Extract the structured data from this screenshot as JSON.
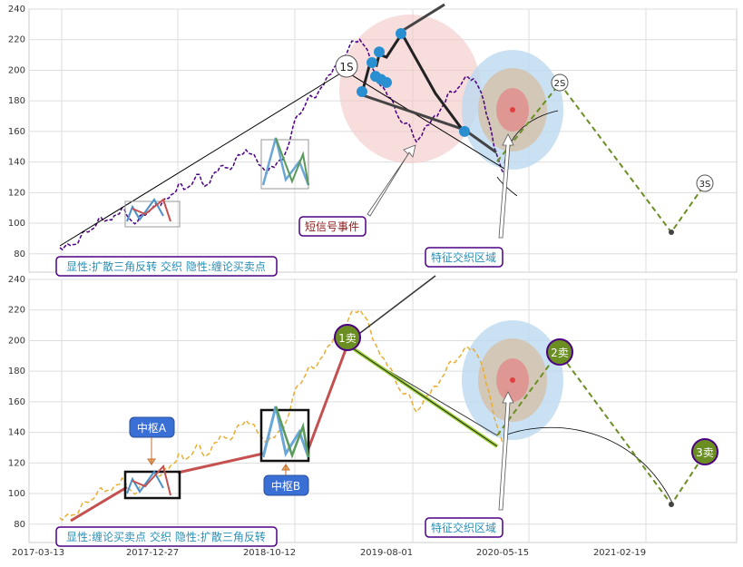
{
  "chart_data": [
    {
      "type": "line",
      "panel": "top",
      "ylim": [
        68,
        240
      ],
      "yticks": [
        "80",
        "100",
        "120",
        "140",
        "160",
        "180",
        "200",
        "220",
        "240"
      ],
      "grid": true,
      "x_dates_shown_bottom": [
        "2017-03-13",
        "2017-12-27",
        "2018-10-12",
        "2019-08-01",
        "2020-05-15",
        "2021-02-19"
      ],
      "series": [
        {
          "values": [
            84,
            83,
            86,
            88,
            90,
            93,
            97,
            100,
            102,
            101,
            104,
            106,
            108,
            105,
            103,
            100,
            104,
            108,
            112,
            110,
            114,
            118,
            120,
            124,
            122,
            126,
            128,
            130,
            125,
            128,
            132,
            136,
            138,
            136,
            140,
            144,
            150,
            145,
            140,
            138,
            134,
            136,
            138,
            142,
            150,
            160,
            170,
            176,
            182,
            180,
            186,
            192,
            196,
            200,
            204,
            210,
            214,
            218,
            222,
            216,
            206,
            198,
            192,
            186,
            180,
            174,
            168,
            164,
            160,
            155,
            158,
            162,
            168,
            172,
            176,
            182,
            186,
            190,
            192,
            194,
            196,
            190,
            178,
            166,
            152,
            140,
            130
          ]
        },
        {
          "values": [
            100,
            108,
            104,
            116
          ]
        },
        {
          "values": [
            124,
            155,
            125,
            148
          ]
        }
      ],
      "annotations": {
        "labels_1s_2s_3s": [
          "1S",
          "2S",
          "3S"
        ],
        "signal_label": "短信号事件",
        "feature_label": "特征交织区域",
        "legend_box": "显性:扩散三角反转 交织 隐性:缠论买卖点",
        "dot_values": [
          186,
          205,
          212,
          196,
          194,
          192,
          224,
          160
        ]
      }
    },
    {
      "type": "line",
      "panel": "bottom",
      "ylim": [
        68,
        240
      ],
      "yticks": [
        "80",
        "100",
        "120",
        "140",
        "160",
        "180",
        "200",
        "220",
        "240"
      ],
      "xticks": [
        "2017-03-13",
        "2017-12-27",
        "2018-10-12",
        "2019-08-01",
        "2020-05-15",
        "2021-02-19"
      ],
      "grid": true,
      "series": [
        {
          "values": [
            84,
            83,
            86,
            88,
            90,
            93,
            97,
            100,
            102,
            101,
            104,
            106,
            108,
            105,
            103,
            100,
            104,
            108,
            112,
            110,
            114,
            118,
            120,
            124,
            122,
            126,
            128,
            130,
            125,
            128,
            132,
            136,
            138,
            136,
            140,
            144,
            150,
            145,
            140,
            138,
            134,
            136,
            138,
            142,
            150,
            160,
            170,
            176,
            182,
            180,
            186,
            192,
            196,
            200,
            204,
            210,
            214,
            218,
            222,
            216,
            206,
            198,
            192,
            186,
            180,
            174,
            168,
            164,
            160,
            155,
            158,
            162,
            168,
            172,
            176,
            182,
            186,
            190,
            192,
            194,
            196,
            190,
            178,
            166,
            152,
            140,
            130
          ]
        }
      ],
      "annotations": {
        "sell_labels": [
          "1卖",
          "2卖",
          "3卖"
        ],
        "center_a": "中枢A",
        "center_b": "中枢B",
        "feature_label": "特征交织区域",
        "legend_box": "显性:缠论买卖点 交织 隐性:扩散三角反转"
      }
    }
  ],
  "colors": {
    "top_price": "#4b0082",
    "bottom_price": "#e8ad34",
    "green_dash": "#6b8e23",
    "dot_blue": "#2a8fd1",
    "red_circle": "#f3c6c6",
    "blue_circle": "#bcdaf0",
    "box_border": "#4b0082",
    "box_text": "#2a8fb5",
    "label_bg_blue": "#3a6fd6",
    "sell_green": "#6b8e23"
  }
}
